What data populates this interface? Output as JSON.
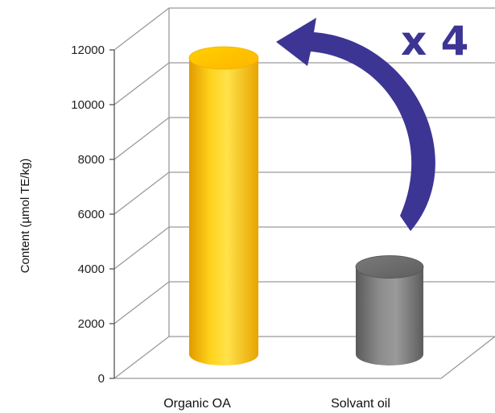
{
  "chart_data": {
    "type": "bar",
    "categories": [
      "Organic OA",
      "Solvant oil"
    ],
    "values": [
      11200,
      3300
    ],
    "title": "",
    "xlabel": "",
    "ylabel": "Content (µmol TE/kg)",
    "ylim": [
      0,
      12000
    ],
    "yticks": [
      0,
      2000,
      4000,
      6000,
      8000,
      10000,
      12000
    ],
    "grid": true,
    "legend": "none",
    "annotation": {
      "text": "x 4",
      "color": "#3d3594"
    },
    "colors": {
      "bar_1": "#ffc400",
      "bar_2": "#808080",
      "grid": "#9a9a9a",
      "arrow": "#3d3594"
    }
  }
}
